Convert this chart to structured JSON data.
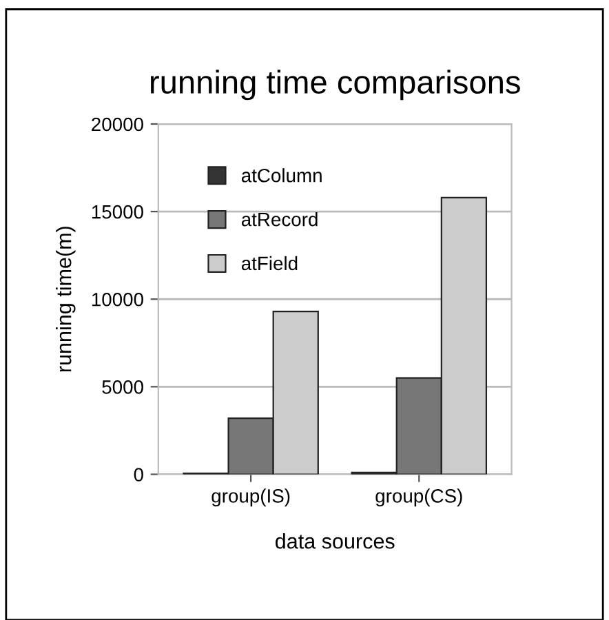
{
  "chart_data": {
    "type": "bar",
    "title": "running time comparisons",
    "xlabel": "data sources",
    "ylabel": "running time(m)",
    "categories": [
      "group(IS)",
      "group(CS)"
    ],
    "series": [
      {
        "name": "atColumn",
        "color": "#333333",
        "values": [
          50,
          100
        ]
      },
      {
        "name": "atRecord",
        "color": "#777777",
        "values": [
          3200,
          5500
        ]
      },
      {
        "name": "atField",
        "color": "#cccccc",
        "values": [
          9300,
          15800
        ]
      }
    ],
    "ylim": [
      0,
      20000
    ],
    "yticks": [
      0,
      5000,
      10000,
      15000,
      20000
    ],
    "grid": "y",
    "legend": "top left"
  }
}
